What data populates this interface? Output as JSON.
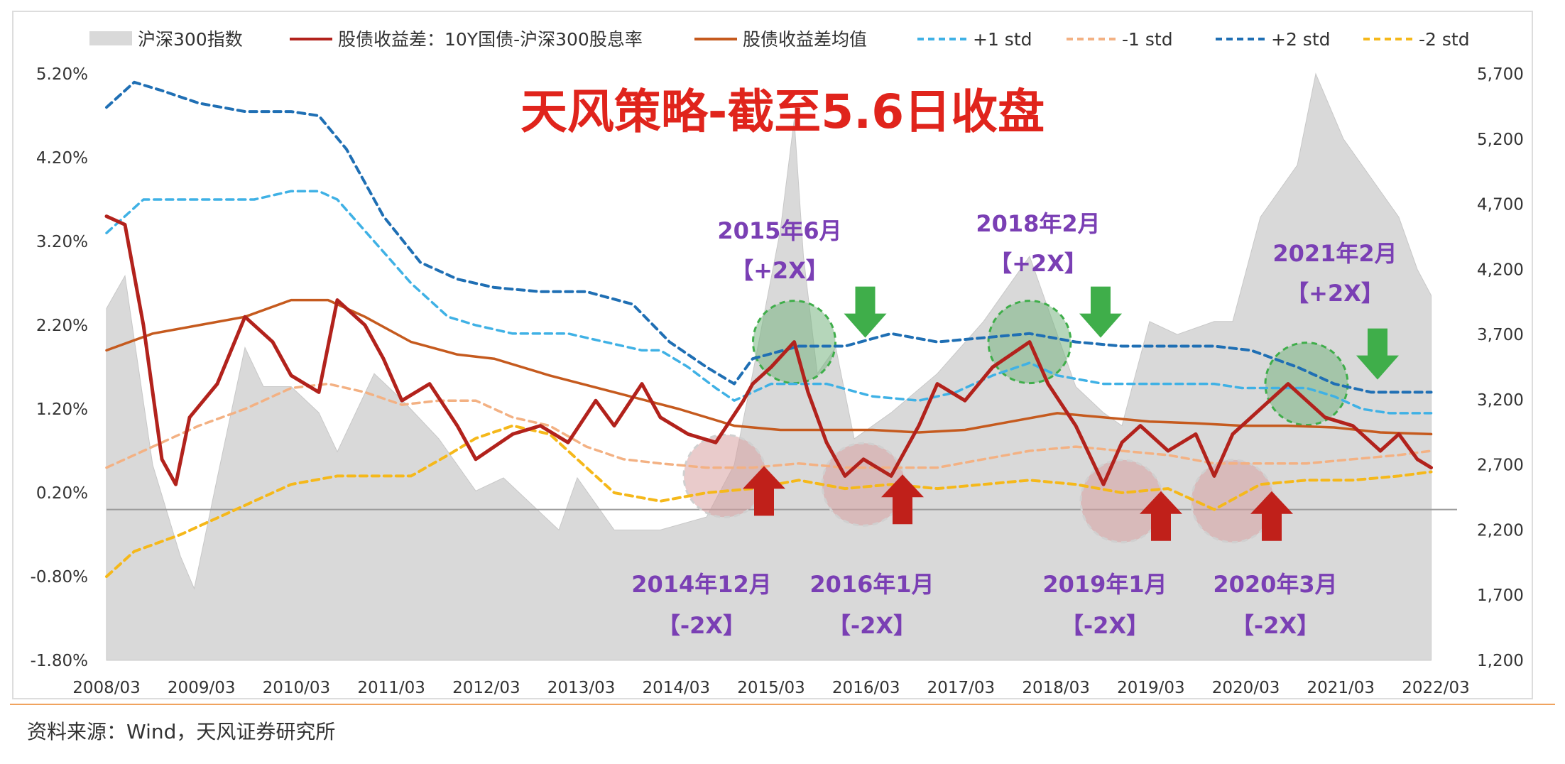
{
  "chart_data": {
    "type": "line",
    "title": "天风策略-截至5.6日收盘",
    "source_note": "资料来源：Wind，天风证券研究所",
    "x_ticks": [
      "2008/03",
      "2009/03",
      "2010/03",
      "2011/03",
      "2012/03",
      "2013/03",
      "2014/03",
      "2015/03",
      "2016/03",
      "2017/03",
      "2018/03",
      "2019/03",
      "2020/03",
      "2021/03",
      "2022/03"
    ],
    "x_range": [
      2008.0,
      2022.4
    ],
    "y_left": {
      "ticks": [
        "5.20%",
        "4.20%",
        "3.20%",
        "2.20%",
        "1.20%",
        "0.20%",
        "-0.80%",
        "-1.80%"
      ],
      "range": [
        -1.8,
        5.2
      ]
    },
    "y_right": {
      "ticks": [
        "5,700",
        "5,200",
        "4,700",
        "4,200",
        "3,700",
        "3,200",
        "2,700",
        "2,200",
        "1,700",
        "1,200"
      ],
      "range": [
        1200,
        5700
      ]
    },
    "legend": [
      "沪深300指数",
      "股债收益差：10Y国债-沪深300股息率",
      "股债收益差均值",
      "+1 std",
      "-1 std",
      "+2 std",
      "-2 std"
    ],
    "colors": {
      "index_area": "#d9d9d9",
      "spread": "#b2221c",
      "mean": "#c55a1e",
      "plus1": "#3fb1e5",
      "minus1": "#f3b183",
      "plus2": "#1f6fb4",
      "minus2": "#f5b81a",
      "title": "#e0241c",
      "annotation": "#7a3fb4",
      "up_arrow": "#c0201a",
      "down_arrow": "#3fae4a"
    },
    "series": [
      {
        "name": "沪深300指数",
        "axis": "right",
        "x": [
          2008.0,
          2008.2,
          2008.5,
          2008.8,
          2008.95,
          2009.2,
          2009.5,
          2009.7,
          2010.0,
          2010.3,
          2010.5,
          2010.9,
          2011.2,
          2011.6,
          2012.0,
          2012.3,
          2012.9,
          2013.1,
          2013.5,
          2014.0,
          2014.5,
          2014.8,
          2015.0,
          2015.3,
          2015.45,
          2015.55,
          2015.7,
          2015.9,
          2016.1,
          2016.5,
          2017.0,
          2017.5,
          2018.0,
          2018.2,
          2018.5,
          2018.8,
          2019.0,
          2019.3,
          2019.6,
          2020.0,
          2020.2,
          2020.5,
          2020.9,
          2021.1,
          2021.4,
          2021.7,
          2022.0,
          2022.2,
          2022.35
        ],
        "y": [
          3900,
          4150,
          2700,
          2000,
          1750,
          2600,
          3600,
          3300,
          3300,
          3100,
          2800,
          3400,
          3200,
          2900,
          2500,
          2600,
          2200,
          2600,
          2200,
          2200,
          2300,
          2700,
          3400,
          4500,
          5350,
          4300,
          3400,
          3600,
          2900,
          3100,
          3400,
          3800,
          4300,
          3900,
          3300,
          3100,
          3000,
          3800,
          3700,
          3800,
          3800,
          4600,
          5000,
          5700,
          5200,
          4900,
          4600,
          4200,
          4000
        ]
      },
      {
        "name": "股债收益差：10Y国债-沪深300股息率",
        "axis": "left",
        "x": [
          2008.0,
          2008.2,
          2008.4,
          2008.6,
          2008.75,
          2008.9,
          2009.2,
          2009.5,
          2009.8,
          2010.0,
          2010.3,
          2010.5,
          2010.8,
          2011.0,
          2011.2,
          2011.5,
          2011.8,
          2012.0,
          2012.4,
          2012.7,
          2013.0,
          2013.3,
          2013.5,
          2013.8,
          2014.0,
          2014.3,
          2014.6,
          2014.9,
          2015.0,
          2015.2,
          2015.45,
          2015.6,
          2015.8,
          2016.0,
          2016.2,
          2016.5,
          2016.8,
          2017.0,
          2017.3,
          2017.6,
          2018.0,
          2018.2,
          2018.5,
          2018.8,
          2019.0,
          2019.2,
          2019.5,
          2019.8,
          2020.0,
          2020.2,
          2020.5,
          2020.8,
          2021.0,
          2021.2,
          2021.5,
          2021.8,
          2022.0,
          2022.2,
          2022.35
        ],
        "y": [
          3.5,
          3.4,
          2.2,
          0.6,
          0.3,
          1.1,
          1.5,
          2.3,
          2.0,
          1.6,
          1.4,
          2.5,
          2.2,
          1.8,
          1.3,
          1.5,
          1.0,
          0.6,
          0.9,
          1.0,
          0.8,
          1.3,
          1.0,
          1.5,
          1.1,
          0.9,
          0.8,
          1.3,
          1.5,
          1.7,
          2.0,
          1.4,
          0.8,
          0.4,
          0.6,
          0.4,
          1.0,
          1.5,
          1.3,
          1.7,
          2.0,
          1.5,
          1.0,
          0.3,
          0.8,
          1.0,
          0.7,
          0.9,
          0.4,
          0.9,
          1.2,
          1.5,
          1.3,
          1.1,
          1.0,
          0.7,
          0.9,
          0.6,
          0.5
        ]
      },
      {
        "name": "股债收益差均值",
        "axis": "left",
        "x": [
          2008.0,
          2008.5,
          2009.0,
          2009.5,
          2010.0,
          2010.4,
          2010.8,
          2011.3,
          2011.8,
          2012.2,
          2012.8,
          2013.5,
          2014.2,
          2014.8,
          2015.3,
          2015.8,
          2016.3,
          2016.8,
          2017.3,
          2017.8,
          2018.3,
          2018.8,
          2019.3,
          2019.8,
          2020.3,
          2020.8,
          2021.3,
          2021.8,
          2022.35
        ],
        "y": [
          1.9,
          2.1,
          2.2,
          2.3,
          2.5,
          2.5,
          2.3,
          2.0,
          1.85,
          1.8,
          1.6,
          1.4,
          1.2,
          1.0,
          0.95,
          0.95,
          0.95,
          0.92,
          0.95,
          1.05,
          1.15,
          1.1,
          1.05,
          1.03,
          1.0,
          1.0,
          0.98,
          0.92,
          0.9
        ]
      },
      {
        "name": "+1 std",
        "axis": "left",
        "x": [
          2008.0,
          2008.4,
          2009.0,
          2009.6,
          2010.0,
          2010.3,
          2010.5,
          2010.9,
          2011.3,
          2011.7,
          2012.0,
          2012.4,
          2013.0,
          2013.4,
          2013.8,
          2014.0,
          2014.3,
          2014.6,
          2014.8,
          2015.2,
          2015.8,
          2016.3,
          2016.8,
          2017.2,
          2017.6,
          2018.0,
          2018.3,
          2018.8,
          2019.3,
          2019.8,
          2020.0,
          2020.3,
          2020.7,
          2021.0,
          2021.3,
          2021.6,
          2021.9,
          2022.35
        ],
        "y": [
          3.3,
          3.7,
          3.7,
          3.7,
          3.8,
          3.8,
          3.7,
          3.2,
          2.7,
          2.3,
          2.2,
          2.1,
          2.1,
          2.0,
          1.9,
          1.9,
          1.7,
          1.45,
          1.3,
          1.5,
          1.5,
          1.35,
          1.3,
          1.4,
          1.6,
          1.75,
          1.6,
          1.5,
          1.5,
          1.5,
          1.5,
          1.45,
          1.45,
          1.45,
          1.35,
          1.2,
          1.15,
          1.15
        ]
      },
      {
        "name": "-1 std",
        "axis": "left",
        "x": [
          2008.0,
          2008.5,
          2009.0,
          2009.5,
          2010.0,
          2010.4,
          2010.8,
          2011.2,
          2011.6,
          2012.0,
          2012.4,
          2012.8,
          2013.2,
          2013.6,
          2014.0,
          2014.5,
          2015.0,
          2015.5,
          2016.0,
          2016.5,
          2017.0,
          2017.5,
          2018.0,
          2018.5,
          2019.0,
          2019.5,
          2020.0,
          2020.5,
          2021.0,
          2021.5,
          2022.0,
          2022.35
        ],
        "y": [
          0.5,
          0.75,
          1.0,
          1.2,
          1.45,
          1.5,
          1.4,
          1.25,
          1.3,
          1.3,
          1.1,
          1.0,
          0.75,
          0.6,
          0.55,
          0.5,
          0.5,
          0.55,
          0.5,
          0.5,
          0.5,
          0.6,
          0.7,
          0.75,
          0.7,
          0.65,
          0.55,
          0.55,
          0.55,
          0.6,
          0.65,
          0.7
        ]
      },
      {
        "name": "+2 std",
        "axis": "left",
        "x": [
          2008.0,
          2008.3,
          2008.6,
          2009.0,
          2009.5,
          2010.0,
          2010.3,
          2010.6,
          2011.0,
          2011.4,
          2011.8,
          2012.2,
          2012.7,
          2013.2,
          2013.7,
          2014.1,
          2014.5,
          2014.8,
          2015.0,
          2015.5,
          2016.0,
          2016.5,
          2017.0,
          2017.5,
          2018.0,
          2018.5,
          2019.0,
          2019.5,
          2020.0,
          2020.4,
          2020.9,
          2021.3,
          2021.7,
          2022.0,
          2022.35
        ],
        "y": [
          4.8,
          5.1,
          5.0,
          4.85,
          4.75,
          4.75,
          4.7,
          4.3,
          3.5,
          2.95,
          2.75,
          2.65,
          2.6,
          2.6,
          2.45,
          2.0,
          1.7,
          1.5,
          1.8,
          1.95,
          1.95,
          2.1,
          2.0,
          2.05,
          2.1,
          2.0,
          1.95,
          1.95,
          1.95,
          1.9,
          1.7,
          1.5,
          1.4,
          1.4,
          1.4
        ]
      },
      {
        "name": "-2 std",
        "axis": "left",
        "x": [
          2008.0,
          2008.3,
          2008.8,
          2009.2,
          2009.6,
          2010.0,
          2010.5,
          2010.9,
          2011.3,
          2011.7,
          2012.0,
          2012.4,
          2012.8,
          2013.2,
          2013.5,
          2014.0,
          2014.5,
          2015.0,
          2015.5,
          2016.0,
          2016.5,
          2017.0,
          2017.5,
          2018.0,
          2018.5,
          2019.0,
          2019.5,
          2020.0,
          2020.5,
          2021.0,
          2021.5,
          2022.0,
          2022.35
        ],
        "y": [
          -0.8,
          -0.5,
          -0.3,
          -0.1,
          0.1,
          0.3,
          0.4,
          0.4,
          0.4,
          0.65,
          0.85,
          1.0,
          0.9,
          0.5,
          0.2,
          0.1,
          0.2,
          0.25,
          0.35,
          0.25,
          0.3,
          0.25,
          0.3,
          0.35,
          0.3,
          0.2,
          0.25,
          0.0,
          0.3,
          0.35,
          0.35,
          0.4,
          0.45
        ]
      }
    ],
    "annotations": [
      {
        "date": "2015年6月",
        "tag": "【+2X】",
        "x": 2015.45,
        "y": 2.0,
        "kind": "peak"
      },
      {
        "date": "2018年2月",
        "tag": "【+2X】",
        "x": 2018.0,
        "y": 2.0,
        "kind": "peak"
      },
      {
        "date": "2021年2月",
        "tag": "【+2X】",
        "x": 2021.0,
        "y": 1.5,
        "kind": "peak"
      },
      {
        "date": "2014年12月",
        "tag": "【-2X】",
        "x": 2014.7,
        "y": 0.4,
        "kind": "trough"
      },
      {
        "date": "2016年1月",
        "tag": "【-2X】",
        "x": 2016.2,
        "y": 0.3,
        "kind": "trough"
      },
      {
        "date": "2019年1月",
        "tag": "【-2X】",
        "x": 2019.0,
        "y": 0.1,
        "kind": "trough"
      },
      {
        "date": "2020年3月",
        "tag": "【-2X】",
        "x": 2020.2,
        "y": 0.1,
        "kind": "trough"
      }
    ]
  }
}
